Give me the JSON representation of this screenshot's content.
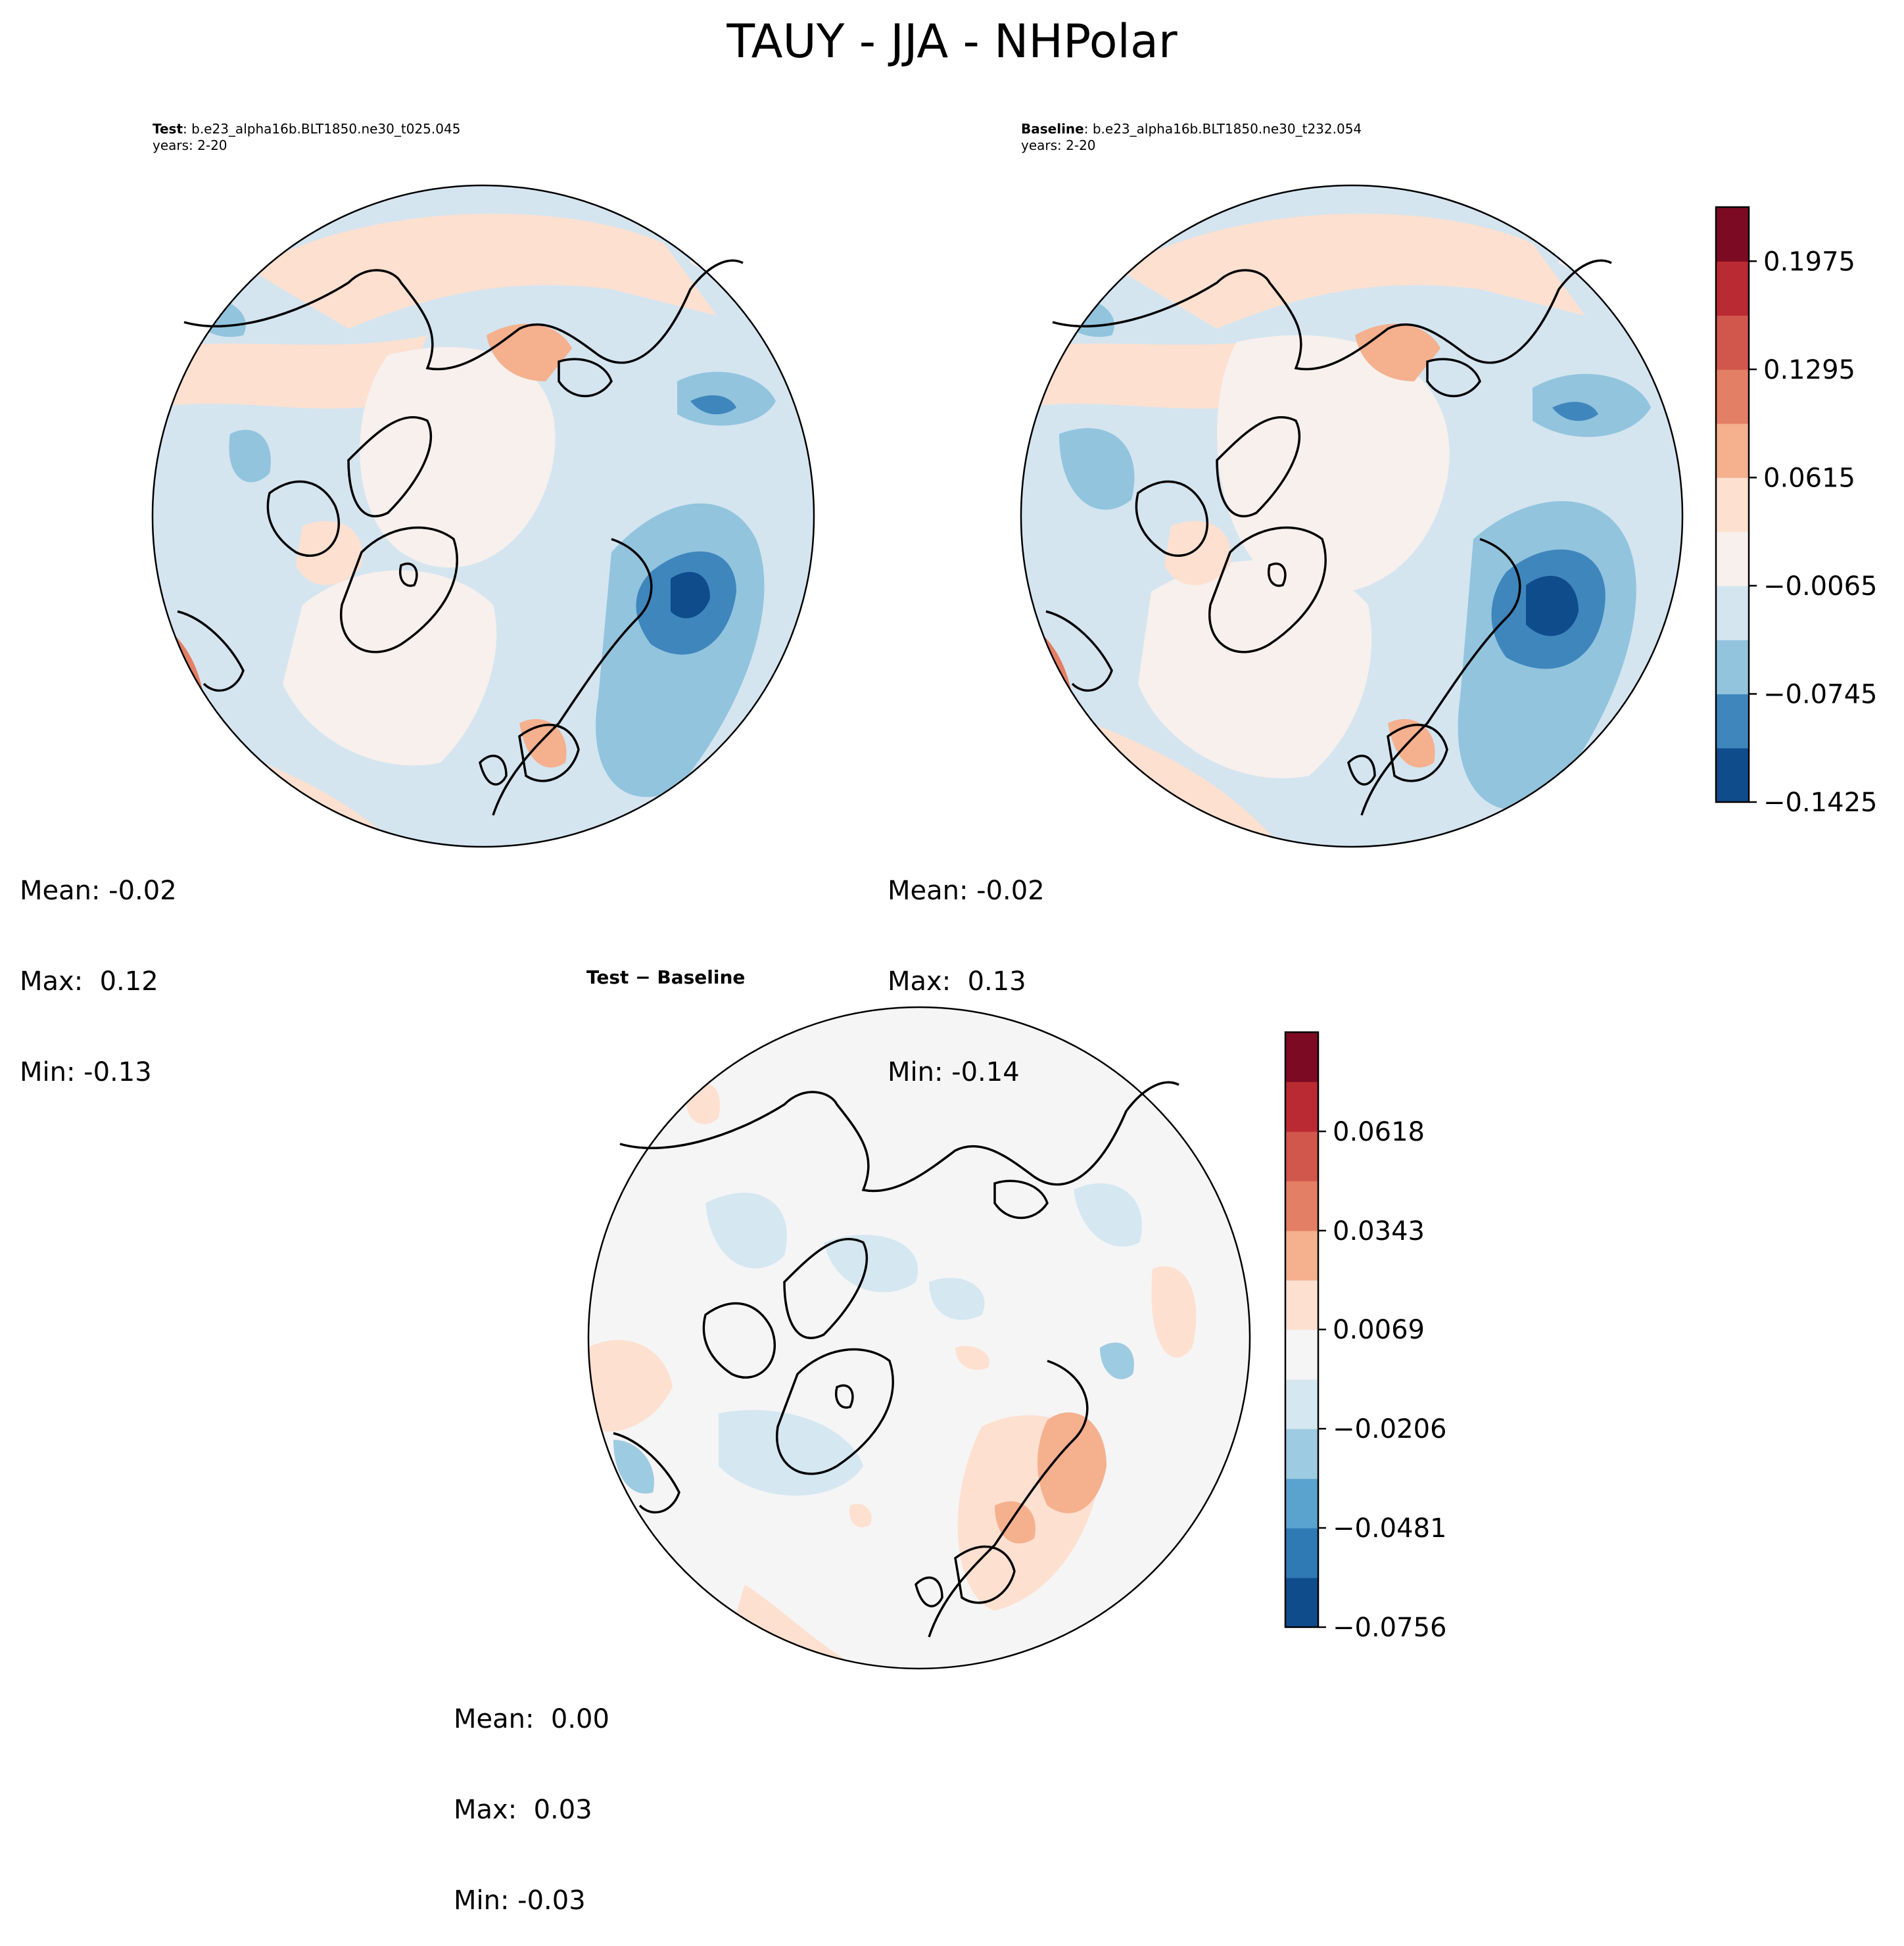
{
  "title": "TAUY - JJA - NHPolar",
  "panels": [
    {
      "label": "Test",
      "case": "b.e23_alpha16b.BLT1850.ne30_t025.045",
      "years": "years: 2-20",
      "stats": {
        "mean": "Mean: -0.02",
        "max": "Max:  0.12",
        "min": "Min: -0.13"
      }
    },
    {
      "label": "Baseline",
      "case": "b.e23_alpha16b.BLT1850.ne30_t232.054",
      "years": "years: 2-20",
      "stats": {
        "mean": "Mean: -0.02",
        "max": "Max:  0.13",
        "min": "Min: -0.14"
      }
    },
    {
      "label": "Test − Baseline",
      "stats": {
        "mean": "Mean:  0.00",
        "max": "Max:  0.03",
        "min": "Min: -0.03"
      }
    }
  ],
  "colors": {
    "rdbu11": [
      "#0f4c8c",
      "#3f86bd",
      "#92c4de",
      "#d4e5f0",
      "#f7f0ec",
      "#fde0d0",
      "#f5b08e",
      "#e27f64",
      "#d1564c",
      "#b92a32",
      "#7c0a22"
    ],
    "rdbu12": [
      "#0f4c8c",
      "#2f79b5",
      "#5ba3cf",
      "#9dcbe2",
      "#d5e7f1",
      "#f5f5f5",
      "#fde0d0",
      "#f5b08e",
      "#e27f64",
      "#d1564c",
      "#b92a32",
      "#7c0a22"
    ],
    "coast": "#000000"
  },
  "chart_data": [
    {
      "type": "colorbar",
      "name": "Test / Baseline shared colorbar",
      "levels": [
        -0.1425,
        -0.1085,
        -0.0745,
        -0.0405,
        -0.0065,
        0.0275,
        0.0615,
        0.0955,
        0.1295,
        0.1635,
        0.1975,
        0.2315
      ],
      "tick_values": [
        -0.1425,
        -0.0745,
        -0.0065,
        0.0615,
        0.1295,
        0.1975
      ],
      "tick_labels": [
        "−0.1425",
        "−0.0745",
        "−0.0065",
        "0.0615",
        "0.1295",
        "0.1975"
      ]
    },
    {
      "type": "colorbar",
      "name": "Difference colorbar",
      "levels": [
        -0.0756,
        -0.0619,
        -0.0481,
        -0.0344,
        -0.0206,
        -0.0069,
        0.0069,
        0.0206,
        0.0343,
        0.0481,
        0.0618,
        0.0756,
        0.0893
      ],
      "tick_values": [
        -0.0756,
        -0.0481,
        -0.0206,
        0.0069,
        0.0343,
        0.0618
      ],
      "tick_labels": [
        "−0.0756",
        "−0.0481",
        "−0.0206",
        "0.0069",
        "0.0343",
        "0.0618"
      ]
    }
  ]
}
